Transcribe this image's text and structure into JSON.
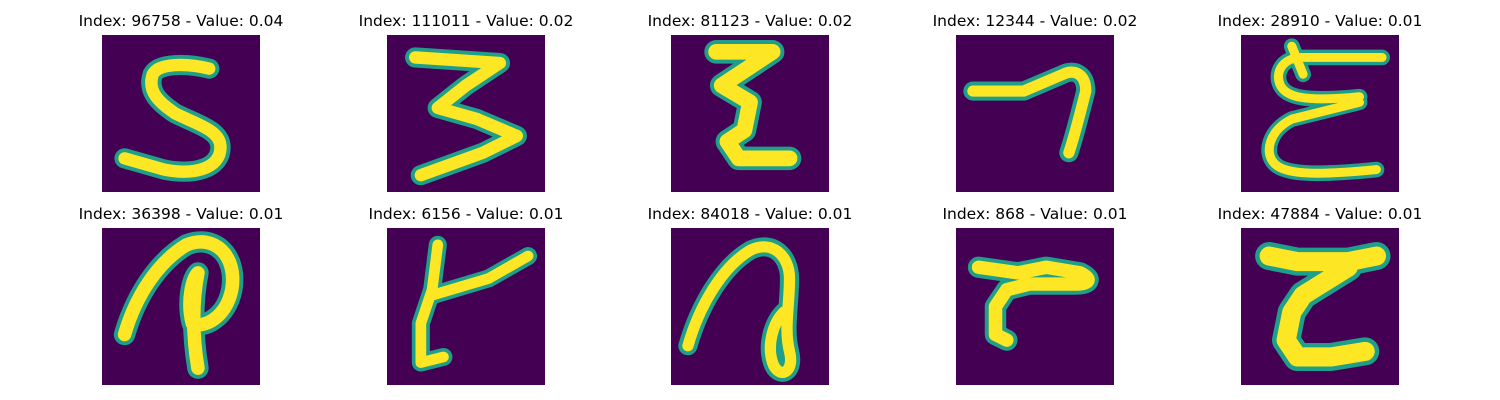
{
  "panels": [
    {
      "index_label": "Index: 96758 - Value: 0.04",
      "glyph": "digit-5-like"
    },
    {
      "index_label": "Index: 111011 - Value: 0.02",
      "glyph": "digit-3-like"
    },
    {
      "index_label": "Index: 81123 - Value: 0.02",
      "glyph": "zigzag-glyph"
    },
    {
      "index_label": "Index: 12344 - Value: 0.02",
      "glyph": "digit-7-like"
    },
    {
      "index_label": "Index: 28910 - Value: 0.01",
      "glyph": "epsilon-like"
    },
    {
      "index_label": "Index: 36398 - Value: 0.01",
      "glyph": "loop-p-glyph"
    },
    {
      "index_label": "Index: 6156 - Value: 0.01",
      "glyph": "t-like-glyph"
    },
    {
      "index_label": "Index: 84018 - Value: 0.01",
      "glyph": "loop-glyph"
    },
    {
      "index_label": "Index: 868 - Value: 0.01",
      "glyph": "r-like-glyph"
    },
    {
      "index_label": "Index: 47884 - Value: 0.01",
      "glyph": "z-like-glyph"
    }
  ],
  "colors": {
    "background": "#440154",
    "edge": "#1f9e89",
    "stroke": "#fde725"
  }
}
